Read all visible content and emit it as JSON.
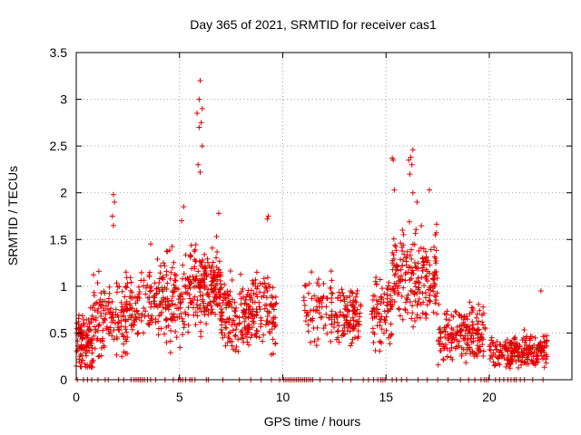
{
  "chart_data": {
    "type": "scatter",
    "title": "Day 365 of 2021, SRMTID for receiver cas1",
    "xlabel": "GPS time / hours",
    "ylabel": "SRMTID / TECUs",
    "xlim": [
      0,
      24
    ],
    "ylim": [
      0,
      3.5
    ],
    "xticks": [
      0,
      5,
      10,
      15,
      20
    ],
    "yticks": [
      0,
      0.5,
      1,
      1.5,
      2,
      2.5,
      3,
      3.5
    ],
    "xtick_labels": [
      "0",
      "5",
      "10",
      "15",
      "20"
    ],
    "ytick_labels": [
      "0",
      "0.5",
      "1",
      "1.5",
      "2",
      "2.5",
      "3",
      "3.5"
    ],
    "grid": true,
    "marker": "plus",
    "series_color": "#e00000",
    "clusters": [
      {
        "x": [
          0.0,
          0.8
        ],
        "y_mean": 0.4,
        "y_spread": 0.35,
        "n": 110
      },
      {
        "x": [
          0.8,
          2.5
        ],
        "y_mean": 0.7,
        "y_spread": 0.45,
        "n": 150
      },
      {
        "x": [
          2.5,
          3.5
        ],
        "y_mean": 0.8,
        "y_spread": 0.35,
        "n": 60
      },
      {
        "x": [
          3.5,
          5.5
        ],
        "y_mean": 0.85,
        "y_spread": 0.55,
        "n": 170
      },
      {
        "x": [
          5.5,
          7.0
        ],
        "y_mean": 1.0,
        "y_spread": 0.45,
        "n": 190
      },
      {
        "x": [
          7.0,
          8.5
        ],
        "y_mean": 0.7,
        "y_spread": 0.4,
        "n": 150
      },
      {
        "x": [
          8.5,
          9.7
        ],
        "y_mean": 0.75,
        "y_spread": 0.45,
        "n": 100
      },
      {
        "x": [
          11.0,
          12.5
        ],
        "y_mean": 0.75,
        "y_spread": 0.4,
        "n": 80
      },
      {
        "x": [
          12.5,
          13.8
        ],
        "y_mean": 0.7,
        "y_spread": 0.35,
        "n": 110
      },
      {
        "x": [
          14.3,
          15.3
        ],
        "y_mean": 0.75,
        "y_spread": 0.45,
        "n": 80
      },
      {
        "x": [
          15.3,
          17.5
        ],
        "y_mean": 1.1,
        "y_spread": 0.55,
        "n": 210
      },
      {
        "x": [
          17.5,
          19.8
        ],
        "y_mean": 0.5,
        "y_spread": 0.35,
        "n": 190
      },
      {
        "x": [
          20.0,
          21.0
        ],
        "y_mean": 0.3,
        "y_spread": 0.2,
        "n": 60
      },
      {
        "x": [
          21.0,
          22.8
        ],
        "y_mean": 0.3,
        "y_spread": 0.2,
        "n": 170
      }
    ],
    "outliers": [
      {
        "x": 6.0,
        "y": 3.2
      },
      {
        "x": 5.95,
        "y": 3.0
      },
      {
        "x": 6.1,
        "y": 2.9
      },
      {
        "x": 5.85,
        "y": 2.85
      },
      {
        "x": 6.05,
        "y": 2.75
      },
      {
        "x": 5.95,
        "y": 2.7
      },
      {
        "x": 6.1,
        "y": 2.5
      },
      {
        "x": 5.9,
        "y": 2.3
      },
      {
        "x": 6.0,
        "y": 2.22
      },
      {
        "x": 1.8,
        "y": 1.98
      },
      {
        "x": 1.85,
        "y": 1.9
      },
      {
        "x": 1.75,
        "y": 1.75
      },
      {
        "x": 1.8,
        "y": 1.65
      },
      {
        "x": 5.2,
        "y": 1.85
      },
      {
        "x": 5.1,
        "y": 1.7
      },
      {
        "x": 9.3,
        "y": 1.75
      },
      {
        "x": 9.25,
        "y": 1.72
      },
      {
        "x": 6.9,
        "y": 1.78
      },
      {
        "x": 15.3,
        "y": 2.37
      },
      {
        "x": 15.35,
        "y": 2.35
      },
      {
        "x": 16.3,
        "y": 2.46
      },
      {
        "x": 16.2,
        "y": 2.38
      },
      {
        "x": 16.1,
        "y": 2.35
      },
      {
        "x": 16.25,
        "y": 2.3
      },
      {
        "x": 16.15,
        "y": 2.2
      },
      {
        "x": 15.4,
        "y": 2.03
      },
      {
        "x": 16.3,
        "y": 2.0
      },
      {
        "x": 17.1,
        "y": 2.03
      },
      {
        "x": 16.5,
        "y": 1.9
      },
      {
        "x": 22.5,
        "y": 0.95
      }
    ],
    "zero_line_points": [
      0.05,
      0.35,
      0.55,
      0.75,
      1.05,
      1.4,
      1.55,
      2.05,
      2.3,
      2.65,
      2.8,
      2.9,
      3.0,
      3.1,
      3.2,
      3.3,
      3.45,
      3.6,
      3.85,
      4.3,
      4.7,
      4.95,
      5.05,
      5.15,
      5.3,
      5.5,
      5.6,
      5.75,
      6.3,
      6.4,
      7.1,
      7.9,
      8.45,
      8.95,
      9.45,
      9.85,
      10.05,
      10.15,
      10.25,
      10.35,
      10.45,
      10.55,
      10.65,
      10.75,
      10.85,
      10.95,
      11.05,
      11.15,
      11.25,
      11.35,
      11.45,
      11.8,
      12.4,
      12.9,
      13.3,
      13.9,
      14.15,
      14.4,
      14.6,
      14.75,
      14.85,
      14.95,
      15.3,
      15.5,
      15.75,
      16.0,
      16.55,
      17.0,
      17.5,
      18.0,
      18.6,
      19.0,
      19.3,
      19.6,
      19.75,
      19.85,
      19.95,
      20.3,
      20.5,
      20.7,
      20.9,
      21.05,
      21.2,
      21.3,
      21.5,
      21.7,
      22.1,
      22.6
    ]
  }
}
